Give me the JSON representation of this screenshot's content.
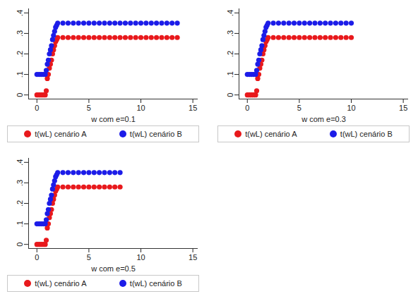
{
  "chart_data": [
    {
      "type": "scatter",
      "x_label": "w com e=0.1",
      "x": [
        0,
        0.2,
        0.4,
        0.6,
        0.8,
        0.9,
        1,
        1.1,
        1.2,
        1.3,
        1.4,
        1.5,
        1.6,
        1.7,
        1.8,
        1.9,
        2,
        2.5,
        3,
        3.5,
        4,
        4.5,
        5,
        5.5,
        6,
        6.5,
        7,
        7.5,
        8,
        8.5,
        9,
        9.5,
        10,
        10.5,
        11,
        11.5,
        12,
        12.5,
        13,
        13.5
      ],
      "series": [
        {
          "name": "t(wL) cenário A",
          "color": "#e8191c",
          "marker": "circle",
          "values": [
            0,
            0,
            0,
            0,
            0,
            0.02,
            0.08,
            0.1,
            0.13,
            0.15,
            0.17,
            0.2,
            0.22,
            0.24,
            0.26,
            0.27,
            0.28,
            0.28,
            0.28,
            0.28,
            0.28,
            0.28,
            0.28,
            0.28,
            0.28,
            0.28,
            0.28,
            0.28,
            0.28,
            0.28,
            0.28,
            0.28,
            0.28,
            0.28,
            0.28,
            0.28,
            0.28,
            0.28,
            0.28,
            0.28
          ]
        },
        {
          "name": "t(wL) cenário B",
          "color": "#1c1ce8",
          "marker": "circle",
          "values": [
            0.1,
            0.1,
            0.1,
            0.1,
            0.1,
            0.12,
            0.15,
            0.17,
            0.2,
            0.22,
            0.24,
            0.27,
            0.29,
            0.31,
            0.33,
            0.34,
            0.35,
            0.35,
            0.35,
            0.35,
            0.35,
            0.35,
            0.35,
            0.35,
            0.35,
            0.35,
            0.35,
            0.35,
            0.35,
            0.35,
            0.35,
            0.35,
            0.35,
            0.35,
            0.35,
            0.35,
            0.35,
            0.35,
            0.35,
            0.35
          ]
        }
      ],
      "xlim": [
        -0.8,
        15.5
      ],
      "xticks": [
        0,
        5,
        10,
        15
      ],
      "ylim": [
        -0.02,
        0.42
      ],
      "yticks": [
        0,
        {
          "value": 0.1,
          "label": ".1"
        },
        {
          "value": 0.2,
          "label": ".2"
        },
        {
          "value": 0.3,
          "label": ".3"
        },
        {
          "value": 0.4,
          "label": ".4"
        }
      ],
      "grid": false,
      "legend": "bottom"
    },
    {
      "type": "scatter",
      "x_label": "w com e=0.3",
      "x": [
        0,
        0.2,
        0.4,
        0.6,
        0.8,
        0.9,
        1,
        1.1,
        1.2,
        1.3,
        1.4,
        1.5,
        1.6,
        1.7,
        1.8,
        1.9,
        2,
        2.5,
        3,
        3.5,
        4,
        4.5,
        5,
        5.5,
        6,
        6.5,
        7,
        7.5,
        8,
        8.5,
        9,
        9.5,
        10
      ],
      "series": [
        {
          "name": "t(wL) cenário A",
          "color": "#e8191c",
          "marker": "circle",
          "values": [
            0,
            0,
            0,
            0,
            0,
            0.02,
            0.08,
            0.1,
            0.13,
            0.15,
            0.17,
            0.2,
            0.22,
            0.24,
            0.26,
            0.27,
            0.28,
            0.28,
            0.28,
            0.28,
            0.28,
            0.28,
            0.28,
            0.28,
            0.28,
            0.28,
            0.28,
            0.28,
            0.28,
            0.28,
            0.28,
            0.28,
            0.28
          ]
        },
        {
          "name": "t(wL) cenário B",
          "color": "#1c1ce8",
          "marker": "circle",
          "values": [
            0.1,
            0.1,
            0.1,
            0.1,
            0.1,
            0.12,
            0.15,
            0.17,
            0.2,
            0.22,
            0.24,
            0.27,
            0.29,
            0.31,
            0.33,
            0.34,
            0.35,
            0.35,
            0.35,
            0.35,
            0.35,
            0.35,
            0.35,
            0.35,
            0.35,
            0.35,
            0.35,
            0.35,
            0.35,
            0.35,
            0.35,
            0.35,
            0.35
          ]
        }
      ],
      "xlim": [
        -0.8,
        15.5
      ],
      "xticks": [
        0,
        5,
        10,
        15
      ],
      "ylim": [
        -0.02,
        0.42
      ],
      "yticks": [
        0,
        {
          "value": 0.1,
          "label": ".1"
        },
        {
          "value": 0.2,
          "label": ".2"
        },
        {
          "value": 0.3,
          "label": ".3"
        },
        {
          "value": 0.4,
          "label": ".4"
        }
      ],
      "grid": false,
      "legend": "bottom"
    },
    {
      "type": "scatter",
      "x_label": "w com e=0.5",
      "x": [
        0,
        0.2,
        0.4,
        0.6,
        0.8,
        0.9,
        1,
        1.1,
        1.2,
        1.3,
        1.4,
        1.5,
        1.6,
        1.7,
        1.8,
        1.9,
        2,
        2.5,
        3,
        3.5,
        4,
        4.5,
        5,
        5.5,
        6,
        6.5,
        7,
        7.5,
        8
      ],
      "series": [
        {
          "name": "t(wL) cenário A",
          "color": "#e8191c",
          "marker": "circle",
          "values": [
            0,
            0,
            0,
            0,
            0,
            0.02,
            0.08,
            0.1,
            0.13,
            0.15,
            0.17,
            0.2,
            0.22,
            0.24,
            0.26,
            0.27,
            0.28,
            0.28,
            0.28,
            0.28,
            0.28,
            0.28,
            0.28,
            0.28,
            0.28,
            0.28,
            0.28,
            0.28,
            0.28
          ]
        },
        {
          "name": "t(wL) cenário B",
          "color": "#1c1ce8",
          "marker": "circle",
          "values": [
            0.1,
            0.1,
            0.1,
            0.1,
            0.1,
            0.12,
            0.15,
            0.17,
            0.2,
            0.22,
            0.24,
            0.27,
            0.29,
            0.31,
            0.33,
            0.34,
            0.35,
            0.35,
            0.35,
            0.35,
            0.35,
            0.35,
            0.35,
            0.35,
            0.35,
            0.35,
            0.35,
            0.35,
            0.35
          ]
        }
      ],
      "xlim": [
        -0.8,
        15.5
      ],
      "xticks": [
        0,
        5,
        10,
        15
      ],
      "ylim": [
        -0.02,
        0.42
      ],
      "yticks": [
        0,
        {
          "value": 0.1,
          "label": ".1"
        },
        {
          "value": 0.2,
          "label": ".2"
        },
        {
          "value": 0.3,
          "label": ".3"
        },
        {
          "value": 0.4,
          "label": ".4"
        }
      ],
      "grid": false,
      "legend": "bottom"
    }
  ]
}
